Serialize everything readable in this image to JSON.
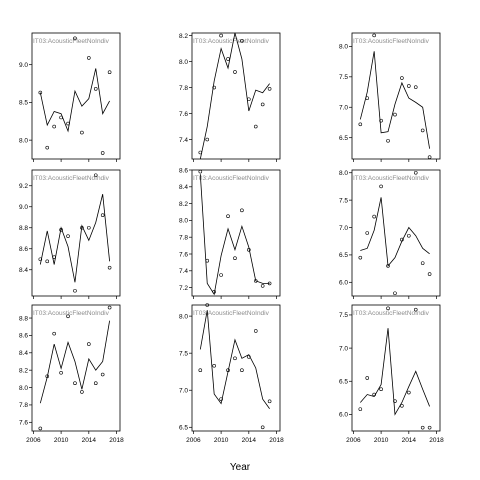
{
  "chart_data": {
    "type": "scatter",
    "xlabel": "Year",
    "ylabel": "",
    "panels": [
      {
        "strip": "IT03:AcousticFleetNoIndiv",
        "ylim": [
          7.75,
          9.42
        ],
        "yticks": [
          8.0,
          8.5,
          9.0
        ],
        "xlim": [
          2005.8,
          2018.5
        ],
        "xticks": [
          2006,
          2010,
          2014,
          2018
        ],
        "show_x_labels": false,
        "points": [
          [
            2007,
            8.63
          ],
          [
            2008,
            7.9
          ],
          [
            2009,
            8.18
          ],
          [
            2010,
            8.3
          ],
          [
            2011,
            8.22
          ],
          [
            2012,
            9.35
          ],
          [
            2013,
            8.1
          ],
          [
            2014,
            9.09
          ],
          [
            2015,
            8.68
          ],
          [
            2016,
            7.83
          ],
          [
            2017,
            8.9
          ]
        ],
        "line": [
          [
            2007,
            8.63
          ],
          [
            2008,
            8.2
          ],
          [
            2009,
            8.38
          ],
          [
            2010,
            8.35
          ],
          [
            2011,
            8.12
          ],
          [
            2012,
            8.65
          ],
          [
            2013,
            8.45
          ],
          [
            2014,
            8.55
          ],
          [
            2015,
            8.95
          ],
          [
            2016,
            8.35
          ],
          [
            2017,
            8.52
          ]
        ]
      },
      {
        "strip": "IT03:AcousticFleetNoIndiv",
        "ylim": [
          7.25,
          8.22
        ],
        "yticks": [
          7.4,
          7.6,
          7.8,
          8.0,
          8.2
        ],
        "xlim": [
          2005.8,
          2018.5
        ],
        "xticks": [
          2006,
          2010,
          2014,
          2018
        ],
        "show_x_labels": false,
        "points": [
          [
            2007,
            7.3
          ],
          [
            2008,
            7.4
          ],
          [
            2009,
            7.8
          ],
          [
            2010,
            8.2
          ],
          [
            2011,
            8.02
          ],
          [
            2012,
            7.92
          ],
          [
            2013,
            8.16
          ],
          [
            2014,
            7.71
          ],
          [
            2015,
            7.5
          ],
          [
            2016,
            7.67
          ],
          [
            2017,
            7.79
          ]
        ],
        "line": [
          [
            2007,
            7.25
          ],
          [
            2008,
            7.5
          ],
          [
            2009,
            7.85
          ],
          [
            2010,
            8.1
          ],
          [
            2011,
            7.95
          ],
          [
            2012,
            8.22
          ],
          [
            2013,
            8.02
          ],
          [
            2014,
            7.62
          ],
          [
            2015,
            7.78
          ],
          [
            2016,
            7.76
          ],
          [
            2017,
            7.83
          ]
        ]
      },
      {
        "strip": "IT03:AcousticFleetNoIndiv",
        "ylim": [
          6.15,
          8.22
        ],
        "yticks": [
          6.5,
          7.0,
          7.5,
          8.0
        ],
        "xlim": [
          2005.8,
          2018.5
        ],
        "xticks": [
          2006,
          2010,
          2014,
          2018
        ],
        "show_x_labels": false,
        "points": [
          [
            2007,
            6.72
          ],
          [
            2008,
            7.15
          ],
          [
            2009,
            8.18
          ],
          [
            2010,
            6.78
          ],
          [
            2011,
            6.45
          ],
          [
            2012,
            6.88
          ],
          [
            2013,
            7.48
          ],
          [
            2014,
            7.35
          ],
          [
            2015,
            7.33
          ],
          [
            2016,
            6.62
          ],
          [
            2017,
            6.18
          ]
        ],
        "line": [
          [
            2007,
            6.8
          ],
          [
            2008,
            7.25
          ],
          [
            2009,
            7.92
          ],
          [
            2010,
            6.58
          ],
          [
            2011,
            6.6
          ],
          [
            2012,
            7.05
          ],
          [
            2013,
            7.4
          ],
          [
            2014,
            7.15
          ],
          [
            2015,
            7.08
          ],
          [
            2016,
            7.0
          ],
          [
            2017,
            6.32
          ]
        ]
      },
      {
        "strip": "IT03:AcousticFleetNoIndiv",
        "ylim": [
          8.15,
          9.35
        ],
        "yticks": [
          8.4,
          8.6,
          8.8,
          9.0,
          9.2
        ],
        "xlim": [
          2005.8,
          2018.5
        ],
        "xticks": [
          2006,
          2010,
          2014,
          2018
        ],
        "show_x_labels": false,
        "points": [
          [
            2007,
            8.5
          ],
          [
            2008,
            8.48
          ],
          [
            2009,
            8.52
          ],
          [
            2010,
            8.78
          ],
          [
            2011,
            8.72
          ],
          [
            2012,
            8.2
          ],
          [
            2013,
            8.8
          ],
          [
            2014,
            8.8
          ],
          [
            2015,
            9.3
          ],
          [
            2016,
            8.92
          ],
          [
            2017,
            8.42
          ]
        ],
        "line": [
          [
            2007,
            8.45
          ],
          [
            2008,
            8.77
          ],
          [
            2009,
            8.45
          ],
          [
            2010,
            8.8
          ],
          [
            2011,
            8.62
          ],
          [
            2012,
            8.28
          ],
          [
            2013,
            8.82
          ],
          [
            2014,
            8.68
          ],
          [
            2015,
            8.85
          ],
          [
            2016,
            9.12
          ],
          [
            2017,
            8.48
          ]
        ]
      },
      {
        "strip": "IT03:AcousticFleetNoIndiv",
        "ylim": [
          7.1,
          8.6
        ],
        "yticks": [
          7.2,
          7.4,
          7.6,
          7.8,
          8.0,
          8.2,
          8.4,
          8.6
        ],
        "xlim": [
          2005.8,
          2018.5
        ],
        "xticks": [
          2006,
          2010,
          2014,
          2018
        ],
        "show_x_labels": false,
        "points": [
          [
            2007,
            8.58
          ],
          [
            2008,
            7.52
          ],
          [
            2009,
            7.15
          ],
          [
            2010,
            7.35
          ],
          [
            2011,
            8.05
          ],
          [
            2012,
            7.55
          ],
          [
            2013,
            8.12
          ],
          [
            2014,
            7.65
          ],
          [
            2015,
            7.28
          ],
          [
            2016,
            7.22
          ],
          [
            2017,
            7.25
          ]
        ],
        "line": [
          [
            2007,
            8.55
          ],
          [
            2008,
            7.25
          ],
          [
            2009,
            7.12
          ],
          [
            2010,
            7.58
          ],
          [
            2011,
            7.9
          ],
          [
            2012,
            7.65
          ],
          [
            2013,
            7.93
          ],
          [
            2014,
            7.68
          ],
          [
            2015,
            7.28
          ],
          [
            2016,
            7.25
          ],
          [
            2017,
            7.25
          ]
        ]
      },
      {
        "strip": "IT03:AcousticFleetNoIndiv",
        "ylim": [
          5.75,
          8.05
        ],
        "yticks": [
          6.0,
          6.5,
          7.0,
          7.5,
          8.0
        ],
        "xlim": [
          2005.8,
          2018.5
        ],
        "xticks": [
          2006,
          2010,
          2014,
          2018
        ],
        "show_x_labels": false,
        "points": [
          [
            2007,
            6.45
          ],
          [
            2008,
            6.9
          ],
          [
            2009,
            7.2
          ],
          [
            2010,
            7.75
          ],
          [
            2011,
            6.3
          ],
          [
            2012,
            5.8
          ],
          [
            2013,
            6.78
          ],
          [
            2014,
            6.85
          ],
          [
            2015,
            8.0
          ],
          [
            2016,
            6.35
          ],
          [
            2017,
            6.15
          ]
        ],
        "line": [
          [
            2007,
            6.58
          ],
          [
            2008,
            6.62
          ],
          [
            2009,
            6.95
          ],
          [
            2010,
            7.55
          ],
          [
            2011,
            6.3
          ],
          [
            2012,
            6.45
          ],
          [
            2013,
            6.75
          ],
          [
            2014,
            7.0
          ],
          [
            2015,
            6.85
          ],
          [
            2016,
            6.62
          ],
          [
            2017,
            6.52
          ]
        ]
      },
      {
        "strip": "IT03:AcousticFleetNoIndiv",
        "ylim": [
          7.5,
          8.95
        ],
        "yticks": [
          7.6,
          7.8,
          8.0,
          8.2,
          8.4,
          8.6,
          8.8
        ],
        "xlim": [
          2005.8,
          2018.5
        ],
        "xticks": [
          2006,
          2010,
          2014,
          2018
        ],
        "show_x_labels": true,
        "points": [
          [
            2007,
            7.53
          ],
          [
            2008,
            8.13
          ],
          [
            2009,
            8.62
          ],
          [
            2010,
            8.17
          ],
          [
            2011,
            8.82
          ],
          [
            2012,
            8.05
          ],
          [
            2013,
            7.95
          ],
          [
            2014,
            8.5
          ],
          [
            2015,
            8.05
          ],
          [
            2016,
            8.15
          ],
          [
            2017,
            8.92
          ]
        ],
        "line": [
          [
            2007,
            7.82
          ],
          [
            2008,
            8.12
          ],
          [
            2009,
            8.5
          ],
          [
            2010,
            8.22
          ],
          [
            2011,
            8.52
          ],
          [
            2012,
            8.3
          ],
          [
            2013,
            7.98
          ],
          [
            2014,
            8.33
          ],
          [
            2015,
            8.2
          ],
          [
            2016,
            8.3
          ],
          [
            2017,
            8.77
          ]
        ]
      },
      {
        "strip": "IT03:AcousticFleetNoIndiv",
        "ylim": [
          6.45,
          8.15
        ],
        "yticks": [
          6.5,
          7.0,
          7.5,
          8.0
        ],
        "xlim": [
          2005.8,
          2018.5
        ],
        "xticks": [
          2006,
          2010,
          2014,
          2018
        ],
        "show_x_labels": true,
        "points": [
          [
            2007,
            7.27
          ],
          [
            2008,
            8.15
          ],
          [
            2009,
            7.33
          ],
          [
            2010,
            6.88
          ],
          [
            2011,
            7.27
          ],
          [
            2012,
            7.43
          ],
          [
            2013,
            7.27
          ],
          [
            2014,
            7.45
          ],
          [
            2015,
            7.8
          ],
          [
            2016,
            6.5
          ],
          [
            2017,
            6.85
          ]
        ],
        "line": [
          [
            2007,
            7.55
          ],
          [
            2008,
            8.08
          ],
          [
            2009,
            6.95
          ],
          [
            2010,
            6.82
          ],
          [
            2011,
            7.25
          ],
          [
            2012,
            7.68
          ],
          [
            2013,
            7.43
          ],
          [
            2014,
            7.48
          ],
          [
            2015,
            7.3
          ],
          [
            2016,
            6.88
          ],
          [
            2017,
            6.75
          ]
        ]
      },
      {
        "strip": "IT03:AcousticFleetNoIndiv",
        "ylim": [
          5.75,
          7.65
        ],
        "yticks": [
          6.0,
          6.5,
          7.0,
          7.5
        ],
        "xlim": [
          2005.8,
          2018.5
        ],
        "xticks": [
          2006,
          2010,
          2014,
          2018
        ],
        "show_x_labels": true,
        "points": [
          [
            2007,
            6.08
          ],
          [
            2008,
            6.55
          ],
          [
            2009,
            6.3
          ],
          [
            2010,
            6.38
          ],
          [
            2011,
            7.6
          ],
          [
            2012,
            6.2
          ],
          [
            2013,
            6.13
          ],
          [
            2014,
            6.33
          ],
          [
            2015,
            7.58
          ],
          [
            2016,
            5.8
          ],
          [
            2017,
            5.8
          ]
        ],
        "line": [
          [
            2007,
            6.18
          ],
          [
            2008,
            6.3
          ],
          [
            2009,
            6.27
          ],
          [
            2010,
            6.45
          ],
          [
            2011,
            7.3
          ],
          [
            2012,
            6.0
          ],
          [
            2013,
            6.18
          ],
          [
            2014,
            6.42
          ],
          [
            2015,
            6.65
          ],
          [
            2016,
            6.38
          ],
          [
            2017,
            6.12
          ]
        ]
      }
    ]
  }
}
